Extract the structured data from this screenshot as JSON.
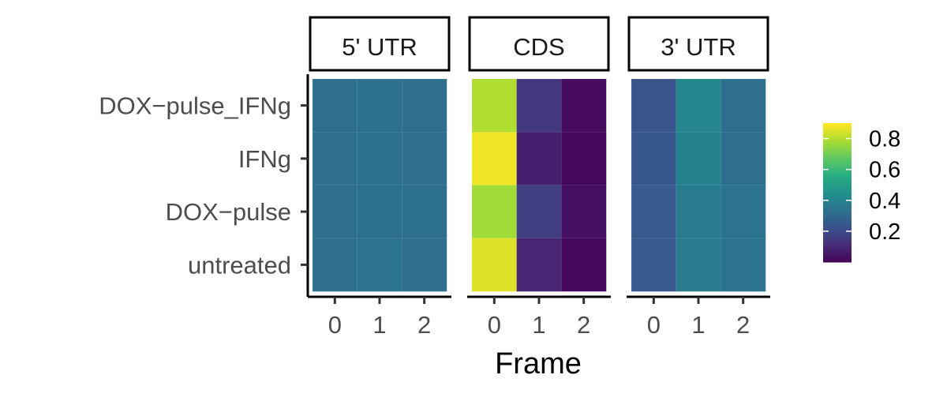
{
  "chart_data": {
    "type": "heatmap",
    "xlabel": "Frame",
    "ylabel": "",
    "facets": [
      "5' UTR",
      "CDS",
      "3' UTR"
    ],
    "x_categories": [
      "0",
      "1",
      "2"
    ],
    "y_categories": [
      "untreated",
      "DOX−pulse",
      "IFNg",
      "DOX−pulse_IFNg"
    ],
    "series": [
      {
        "facet": "5' UTR",
        "rows": [
          {
            "condition": "DOX−pulse_IFNg",
            "values": [
              0.33,
              0.34,
              0.33
            ]
          },
          {
            "condition": "IFNg",
            "values": [
              0.33,
              0.34,
              0.33
            ]
          },
          {
            "condition": "DOX−pulse",
            "values": [
              0.33,
              0.34,
              0.34
            ]
          },
          {
            "condition": "untreated",
            "values": [
              0.33,
              0.35,
              0.33
            ]
          }
        ]
      },
      {
        "facet": "CDS",
        "rows": [
          {
            "condition": "DOX−pulse_IFNg",
            "values": [
              0.8,
              0.15,
              0.03
            ]
          },
          {
            "condition": "IFNg",
            "values": [
              0.88,
              0.08,
              0.02
            ]
          },
          {
            "condition": "DOX−pulse",
            "values": [
              0.78,
              0.17,
              0.04
            ]
          },
          {
            "condition": "untreated",
            "values": [
              0.86,
              0.1,
              0.02
            ]
          }
        ]
      },
      {
        "facet": "3' UTR",
        "rows": [
          {
            "condition": "DOX−pulse_IFNg",
            "values": [
              0.24,
              0.42,
              0.33
            ]
          },
          {
            "condition": "IFNg",
            "values": [
              0.25,
              0.4,
              0.33
            ]
          },
          {
            "condition": "DOX−pulse",
            "values": [
              0.26,
              0.38,
              0.35
            ]
          },
          {
            "condition": "untreated",
            "values": [
              0.26,
              0.38,
              0.35
            ]
          }
        ]
      }
    ],
    "colorscale": "viridis",
    "color_range": [
      0,
      0.9
    ],
    "legend": {
      "position": "right",
      "ticks": [
        "0.8",
        "0.6",
        "0.4",
        "0.2"
      ]
    },
    "grid": false
  }
}
